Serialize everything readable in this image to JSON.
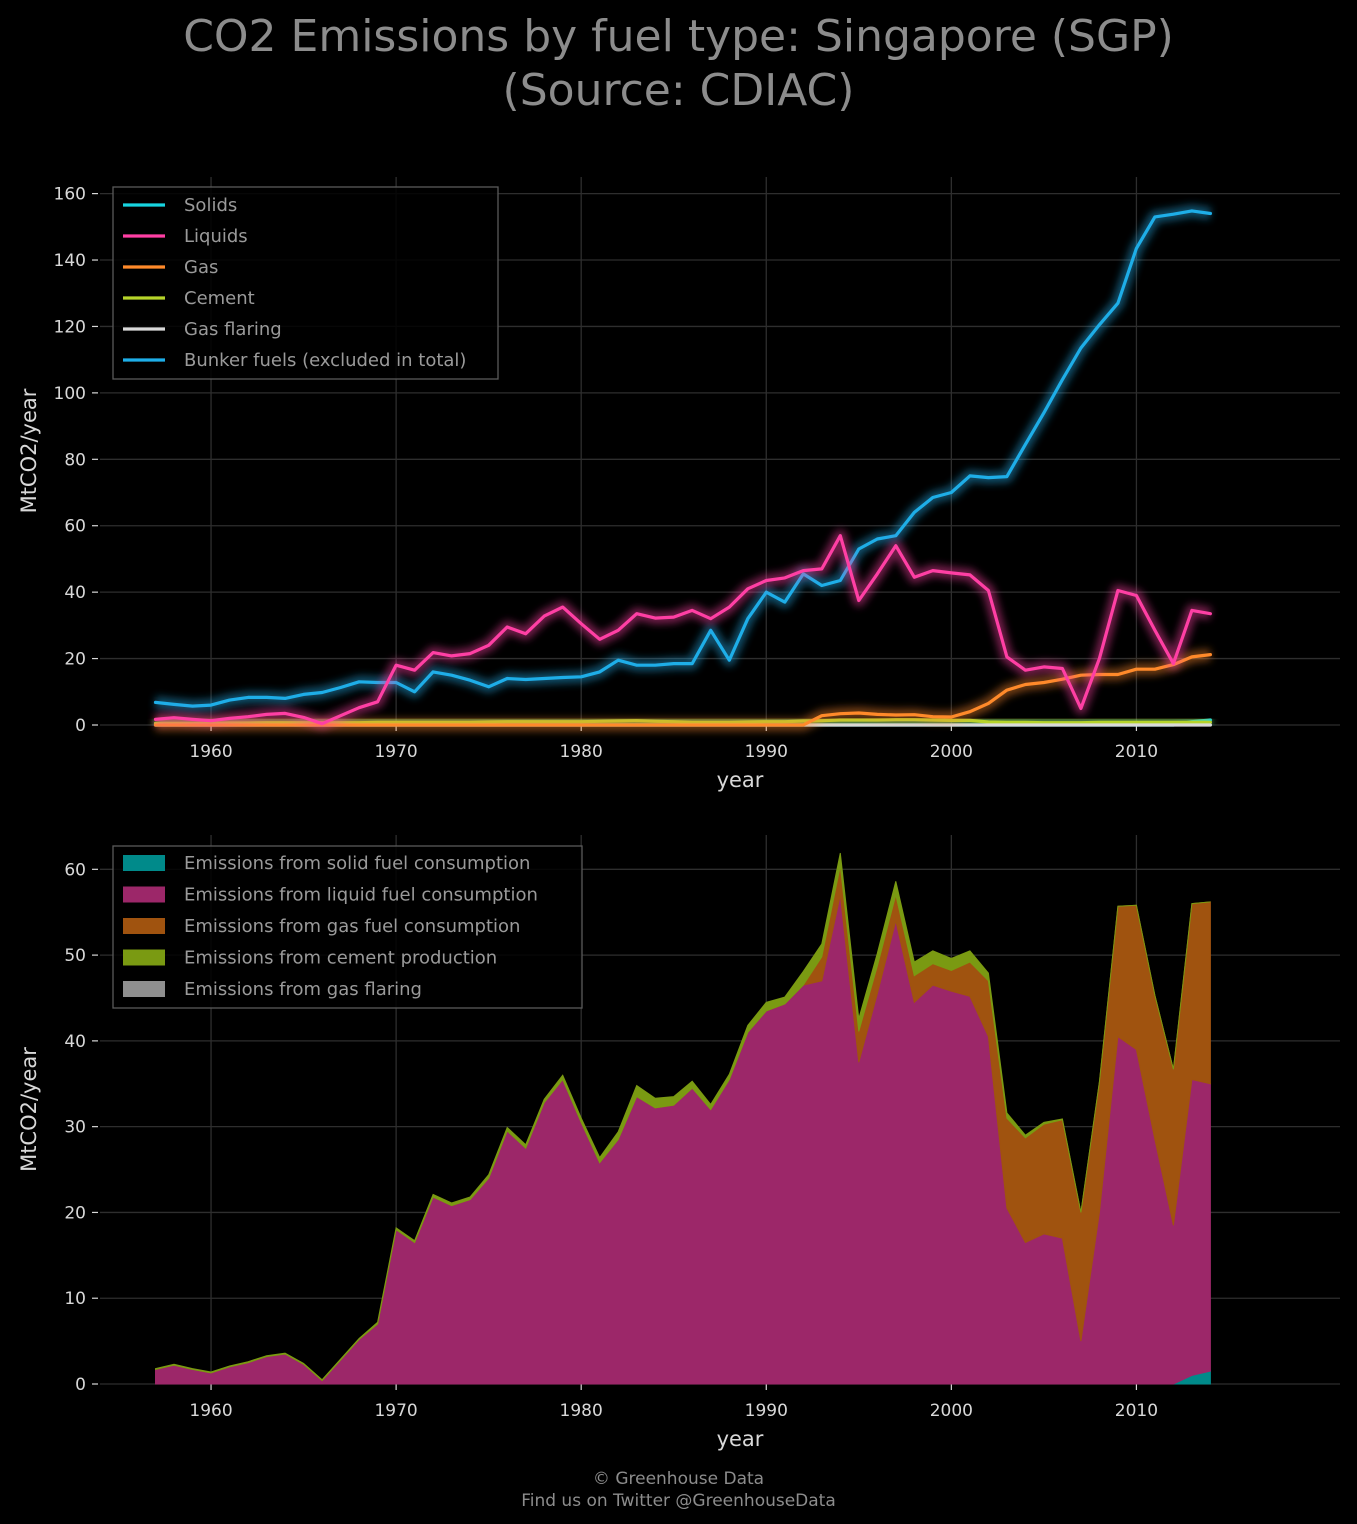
{
  "title": {
    "line1": "CO2 Emissions by fuel type: Singapore (SGP)",
    "line2": "(Source: CDIAC)"
  },
  "footer": {
    "line1": "© Greenhouse Data",
    "line2": "Find us on Twitter @GreenhouseData"
  },
  "chart_data": [
    {
      "type": "line",
      "xlabel": "year",
      "ylabel": "MtCO2/year",
      "xlim": [
        1954,
        2021
      ],
      "ylim": [
        0,
        165
      ],
      "xticks": [
        1960,
        1970,
        1980,
        1990,
        2000,
        2010
      ],
      "yticks": [
        0,
        20,
        40,
        60,
        80,
        100,
        120,
        140,
        160
      ],
      "grid": true,
      "legend_position": "top-left",
      "x": [
        1957,
        1958,
        1959,
        1960,
        1961,
        1962,
        1963,
        1964,
        1965,
        1966,
        1967,
        1968,
        1969,
        1970,
        1971,
        1972,
        1973,
        1974,
        1975,
        1976,
        1977,
        1978,
        1979,
        1980,
        1981,
        1982,
        1983,
        1984,
        1985,
        1986,
        1987,
        1988,
        1989,
        1990,
        1991,
        1992,
        1993,
        1994,
        1995,
        1996,
        1997,
        1998,
        1999,
        2000,
        2001,
        2002,
        2003,
        2004,
        2005,
        2006,
        2007,
        2008,
        2009,
        2010,
        2011,
        2012,
        2013,
        2014
      ],
      "series": [
        {
          "name": "Solids",
          "color": "#17d4e0",
          "values": [
            0,
            0,
            0,
            0,
            0,
            0,
            0,
            0,
            0,
            0,
            0,
            0,
            0,
            0,
            0,
            0,
            0,
            0,
            0,
            0,
            0,
            0,
            0,
            0,
            0,
            0,
            0,
            0,
            0,
            0,
            0,
            0,
            0,
            0,
            0,
            0,
            0,
            0,
            0,
            0,
            0,
            0,
            0,
            0,
            0,
            0,
            0,
            0,
            0,
            0,
            0,
            0,
            0,
            0,
            0,
            0,
            1,
            1.5
          ]
        },
        {
          "name": "Liquids",
          "color": "#ff3fa4",
          "values": [
            1.7,
            2.2,
            1.7,
            1.3,
            2,
            2.5,
            3.2,
            3.5,
            2.3,
            0.4,
            2.8,
            5.2,
            7,
            18,
            16.5,
            21.8,
            20.8,
            21.5,
            24,
            29.5,
            27.5,
            32.8,
            35.5,
            30.5,
            25.8,
            28.5,
            33.5,
            32.2,
            32.5,
            34.5,
            32,
            35.5,
            41,
            43.5,
            44.3,
            46.5,
            47,
            57,
            37.5,
            45.5,
            54,
            44.5,
            46.5,
            45.8,
            45.2,
            40.5,
            20.5,
            16.5,
            17.5,
            17,
            5,
            20,
            40.5,
            39,
            28.5,
            18.5,
            34.5,
            33.5
          ]
        },
        {
          "name": "Gas",
          "color": "#ff8a2a",
          "values": [
            0,
            0,
            0,
            0,
            0,
            0,
            0,
            0,
            0,
            0,
            0,
            0,
            0,
            0,
            0,
            0,
            0,
            0,
            0,
            0,
            0,
            0,
            0,
            0,
            0,
            0,
            0,
            0,
            0,
            0,
            0,
            0,
            0,
            0,
            0,
            0,
            2.8,
            3.4,
            3.6,
            3.2,
            3,
            3.1,
            2.5,
            2.4,
            4,
            6.5,
            10.5,
            12.2,
            12.8,
            13.8,
            15,
            15.2,
            15.2,
            16.8,
            16.8,
            18.2,
            20.5,
            21.2
          ]
        },
        {
          "name": "Cement",
          "color": "#b6d42a",
          "values": [
            0.5,
            0.5,
            0.5,
            0.5,
            0.6,
            0.6,
            0.7,
            0.7,
            0.7,
            0.7,
            0.7,
            0.7,
            0.8,
            0.8,
            0.8,
            0.8,
            0.8,
            0.8,
            0.9,
            1,
            1,
            1,
            1,
            1,
            1.1,
            1.2,
            1.3,
            1.1,
            1,
            0.8,
            0.8,
            0.8,
            0.9,
            1,
            1,
            1.2,
            1.3,
            1.5,
            1.5,
            1.5,
            1.6,
            1.6,
            1.5,
            1.4,
            1.4,
            0.9,
            0.8,
            0.8,
            0.7,
            0.7,
            0.7,
            0.8,
            0.8,
            0.8,
            0.8,
            0.8,
            0.8,
            0.8
          ]
        },
        {
          "name": "Gas flaring",
          "color": "#d9d9d9",
          "values": [
            0,
            0,
            0,
            0,
            0,
            0,
            0,
            0,
            0,
            0,
            0,
            0,
            0,
            0,
            0,
            0,
            0,
            0,
            0,
            0,
            0,
            0,
            0,
            0,
            0,
            0,
            0,
            0,
            0,
            0,
            0,
            0,
            0,
            0,
            0,
            0,
            0,
            0,
            0,
            0,
            0,
            0,
            0,
            0,
            0,
            0,
            0,
            0,
            0,
            0,
            0,
            0,
            0,
            0,
            0,
            0,
            0,
            0
          ]
        },
        {
          "name": "Bunker fuels (excluded in total)",
          "color": "#1eaee8",
          "values": [
            6.8,
            6.2,
            5.7,
            6,
            7.5,
            8.3,
            8.3,
            8,
            9.2,
            9.8,
            11.3,
            13,
            12.8,
            12.8,
            10,
            16,
            15,
            13.5,
            11.5,
            14,
            13.7,
            14,
            14.3,
            14.5,
            16,
            19.5,
            18,
            18,
            18.5,
            18.5,
            28.5,
            19.5,
            32,
            40,
            37,
            45.5,
            42,
            43.5,
            53,
            56,
            57,
            64,
            68.5,
            70,
            75,
            74.5,
            74.8,
            84.5,
            94,
            104,
            113.5,
            120.5,
            127,
            143.5,
            153,
            153.8,
            154.8,
            154
          ]
        }
      ]
    },
    {
      "type": "area",
      "stacked": true,
      "xlabel": "year",
      "ylabel": "MtCO2/year",
      "xlim": [
        1954,
        2021
      ],
      "ylim": [
        0,
        64
      ],
      "xticks": [
        1960,
        1970,
        1980,
        1990,
        2000,
        2010
      ],
      "yticks": [
        0,
        10,
        20,
        30,
        40,
        50,
        60
      ],
      "grid": true,
      "legend_position": "top-left",
      "x": [
        1957,
        1958,
        1959,
        1960,
        1961,
        1962,
        1963,
        1964,
        1965,
        1966,
        1967,
        1968,
        1969,
        1970,
        1971,
        1972,
        1973,
        1974,
        1975,
        1976,
        1977,
        1978,
        1979,
        1980,
        1981,
        1982,
        1983,
        1984,
        1985,
        1986,
        1987,
        1988,
        1989,
        1990,
        1991,
        1992,
        1993,
        1994,
        1995,
        1996,
        1997,
        1998,
        1999,
        2000,
        2001,
        2002,
        2003,
        2004,
        2005,
        2006,
        2007,
        2008,
        2009,
        2010,
        2011,
        2012,
        2013,
        2014
      ],
      "series": [
        {
          "name": "Emissions from solid fuel consumption",
          "color": "#008a8a",
          "values": [
            0,
            0,
            0,
            0,
            0,
            0,
            0,
            0,
            0,
            0,
            0,
            0,
            0,
            0,
            0,
            0,
            0,
            0,
            0,
            0,
            0,
            0,
            0,
            0,
            0,
            0,
            0,
            0,
            0,
            0,
            0,
            0,
            0,
            0,
            0,
            0,
            0,
            0,
            0,
            0,
            0,
            0,
            0,
            0,
            0,
            0,
            0,
            0,
            0,
            0,
            0,
            0,
            0,
            0,
            0,
            0,
            1,
            1.5
          ]
        },
        {
          "name": "Emissions from liquid fuel consumption",
          "color": "#9c2769",
          "values": [
            1.7,
            2.2,
            1.7,
            1.3,
            2,
            2.5,
            3.2,
            3.5,
            2.3,
            0.4,
            2.8,
            5.2,
            7,
            18,
            16.5,
            21.8,
            20.8,
            21.5,
            24,
            29.5,
            27.5,
            32.8,
            35.5,
            30.5,
            25.8,
            28.5,
            33.5,
            32.2,
            32.5,
            34.5,
            32,
            35.5,
            41,
            43.5,
            44.3,
            46.5,
            47,
            57,
            37.5,
            45.5,
            54,
            44.5,
            46.5,
            45.8,
            45.2,
            40.5,
            20.5,
            16.5,
            17.5,
            17,
            5,
            20,
            40.5,
            39,
            28.5,
            18.5,
            34.5,
            33.5
          ]
        },
        {
          "name": "Emissions from gas fuel consumption",
          "color": "#a0530f",
          "values": [
            0,
            0,
            0,
            0,
            0,
            0,
            0,
            0,
            0,
            0,
            0,
            0,
            0,
            0,
            0,
            0,
            0,
            0,
            0,
            0,
            0,
            0,
            0,
            0,
            0,
            0,
            0,
            0,
            0,
            0,
            0,
            0,
            0,
            0,
            0,
            0,
            2.8,
            3.4,
            3.6,
            3.2,
            3,
            3.1,
            2.5,
            2.4,
            4,
            6.5,
            10.5,
            12.2,
            12.8,
            13.8,
            15,
            15.2,
            15.2,
            16.8,
            16.8,
            18.2,
            20.5,
            21.2
          ]
        },
        {
          "name": "Emissions from cement production",
          "color": "#7a9a12",
          "values": [
            0.1,
            0.1,
            0.1,
            0.1,
            0.1,
            0.1,
            0.1,
            0.1,
            0.1,
            0.1,
            0.1,
            0.1,
            0.2,
            0.2,
            0.2,
            0.3,
            0.3,
            0.3,
            0.4,
            0.4,
            0.4,
            0.4,
            0.5,
            0.5,
            0.6,
            0.9,
            1.3,
            1.1,
            1,
            0.8,
            0.6,
            0.6,
            0.8,
            1,
            0.8,
            1.6,
            1.5,
            1.5,
            1.5,
            1.5,
            1.6,
            1.6,
            1.5,
            1.4,
            1.3,
            0.9,
            0.6,
            0.3,
            0.2,
            0.1,
            0,
            0,
            0,
            0,
            0,
            0,
            0,
            0
          ]
        },
        {
          "name": "Emissions from gas flaring",
          "color": "#8f8f8f",
          "values": [
            0,
            0,
            0,
            0,
            0,
            0,
            0,
            0,
            0,
            0,
            0,
            0,
            0,
            0,
            0,
            0,
            0,
            0,
            0,
            0,
            0,
            0,
            0,
            0,
            0,
            0,
            0,
            0,
            0,
            0,
            0,
            0,
            0,
            0,
            0,
            0,
            0,
            0,
            0,
            0,
            0,
            0,
            0,
            0,
            0,
            0,
            0,
            0,
            0,
            0,
            0,
            0,
            0,
            0,
            0,
            0,
            0,
            0
          ]
        }
      ]
    }
  ]
}
